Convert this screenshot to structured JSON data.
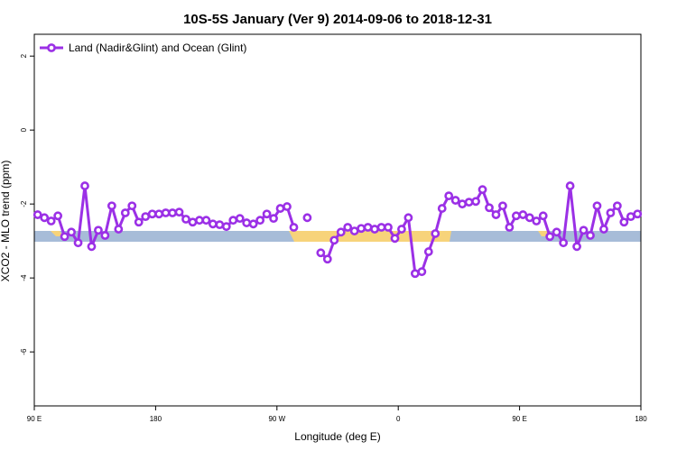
{
  "chart_data": {
    "type": "line",
    "title": "10S-5S January (Ver 9)   2014-09-06 to 2018-12-31",
    "x_label": "Longitude (deg E)",
    "y_label": "XCO2 - MLO trend (ppm)",
    "legend": "top-left",
    "x": [
      92.5,
      97.5,
      102.5,
      107.5,
      112.5,
      117.5,
      122.5,
      127.5,
      132.5,
      137.5,
      142.5,
      147.5,
      152.5,
      157.5,
      162.5,
      167.5,
      172.5,
      177.5,
      182.5,
      187.5,
      192.5,
      197.5,
      202.5,
      207.5,
      212.5,
      217.5,
      222.5,
      227.5,
      232.5,
      237.5,
      242.5,
      247.5,
      252.5,
      257.5,
      262.5,
      267.5,
      272.5,
      277.5,
      282.5,
      287.5,
      292.5,
      297.5,
      302.5,
      307.5,
      312.5,
      317.5,
      322.5,
      327.5,
      332.5,
      337.5,
      342.5,
      347.5,
      352.5,
      357.5,
      362.5,
      367.5,
      372.5,
      377.5,
      382.5,
      387.5,
      392.5,
      397.5,
      402.5,
      407.5,
      412.5,
      417.5,
      422.5,
      427.5,
      432.5,
      437.5,
      442.5,
      447.5,
      452.5,
      457.5,
      462.5,
      467.5,
      472.5,
      477.5,
      482.5,
      487.5,
      492.5,
      497.5,
      502.5,
      507.5,
      512.5,
      517.5,
      522.5,
      527.5,
      532.5,
      537.5
    ],
    "series": [
      {
        "name": "Land (Nadir&Glint) and Ocean (Glint)",
        "color": "#9b30e6",
        "values": [
          -2.29,
          -2.37,
          -2.46,
          -2.32,
          -2.88,
          -2.76,
          -3.05,
          -1.51,
          -3.15,
          -2.71,
          -2.85,
          -2.05,
          -2.68,
          -2.24,
          -2.05,
          -2.49,
          -2.34,
          -2.27,
          -2.27,
          -2.24,
          -2.24,
          -2.22,
          -2.41,
          -2.49,
          -2.44,
          -2.44,
          -2.54,
          -2.56,
          -2.61,
          -2.44,
          -2.39,
          -2.51,
          -2.54,
          -2.44,
          -2.27,
          -2.39,
          -2.12,
          -2.07,
          -2.63,
          null,
          -2.37,
          null,
          -3.32,
          -3.49,
          -2.98,
          -2.76,
          -2.63,
          -2.73,
          -2.66,
          -2.63,
          -2.68,
          -2.63,
          -2.63,
          -2.93,
          -2.68,
          -2.37,
          -3.88,
          -3.83,
          -3.29,
          -2.8,
          -2.12,
          -1.78,
          -1.9,
          -2.0,
          -1.95,
          -1.93,
          -1.61,
          -2.1,
          -2.29,
          -2.05,
          -2.63,
          -2.32,
          -2.29,
          -2.37,
          -2.46,
          -2.32,
          -2.88,
          -2.76,
          -3.05,
          -1.51,
          -3.15,
          -2.71,
          -2.85,
          -2.05,
          -2.68,
          -2.24,
          -2.05,
          -2.49,
          -2.34,
          -2.27
        ]
      }
    ],
    "xlim": [
      90,
      540
    ],
    "xticks": [
      {
        "value": 90,
        "label": "90 E"
      },
      180,
      {
        "value": 270,
        "label": "90 W"
      },
      {
        "value": 360,
        "label": "0"
      },
      {
        "value": 450,
        "label": "90 E"
      },
      {
        "value": 540,
        "label": "180"
      }
    ],
    "ylim": [
      -7.46,
      2.59
    ],
    "yticks": [
      2,
      0,
      -2,
      -4,
      -6
    ]
  }
}
